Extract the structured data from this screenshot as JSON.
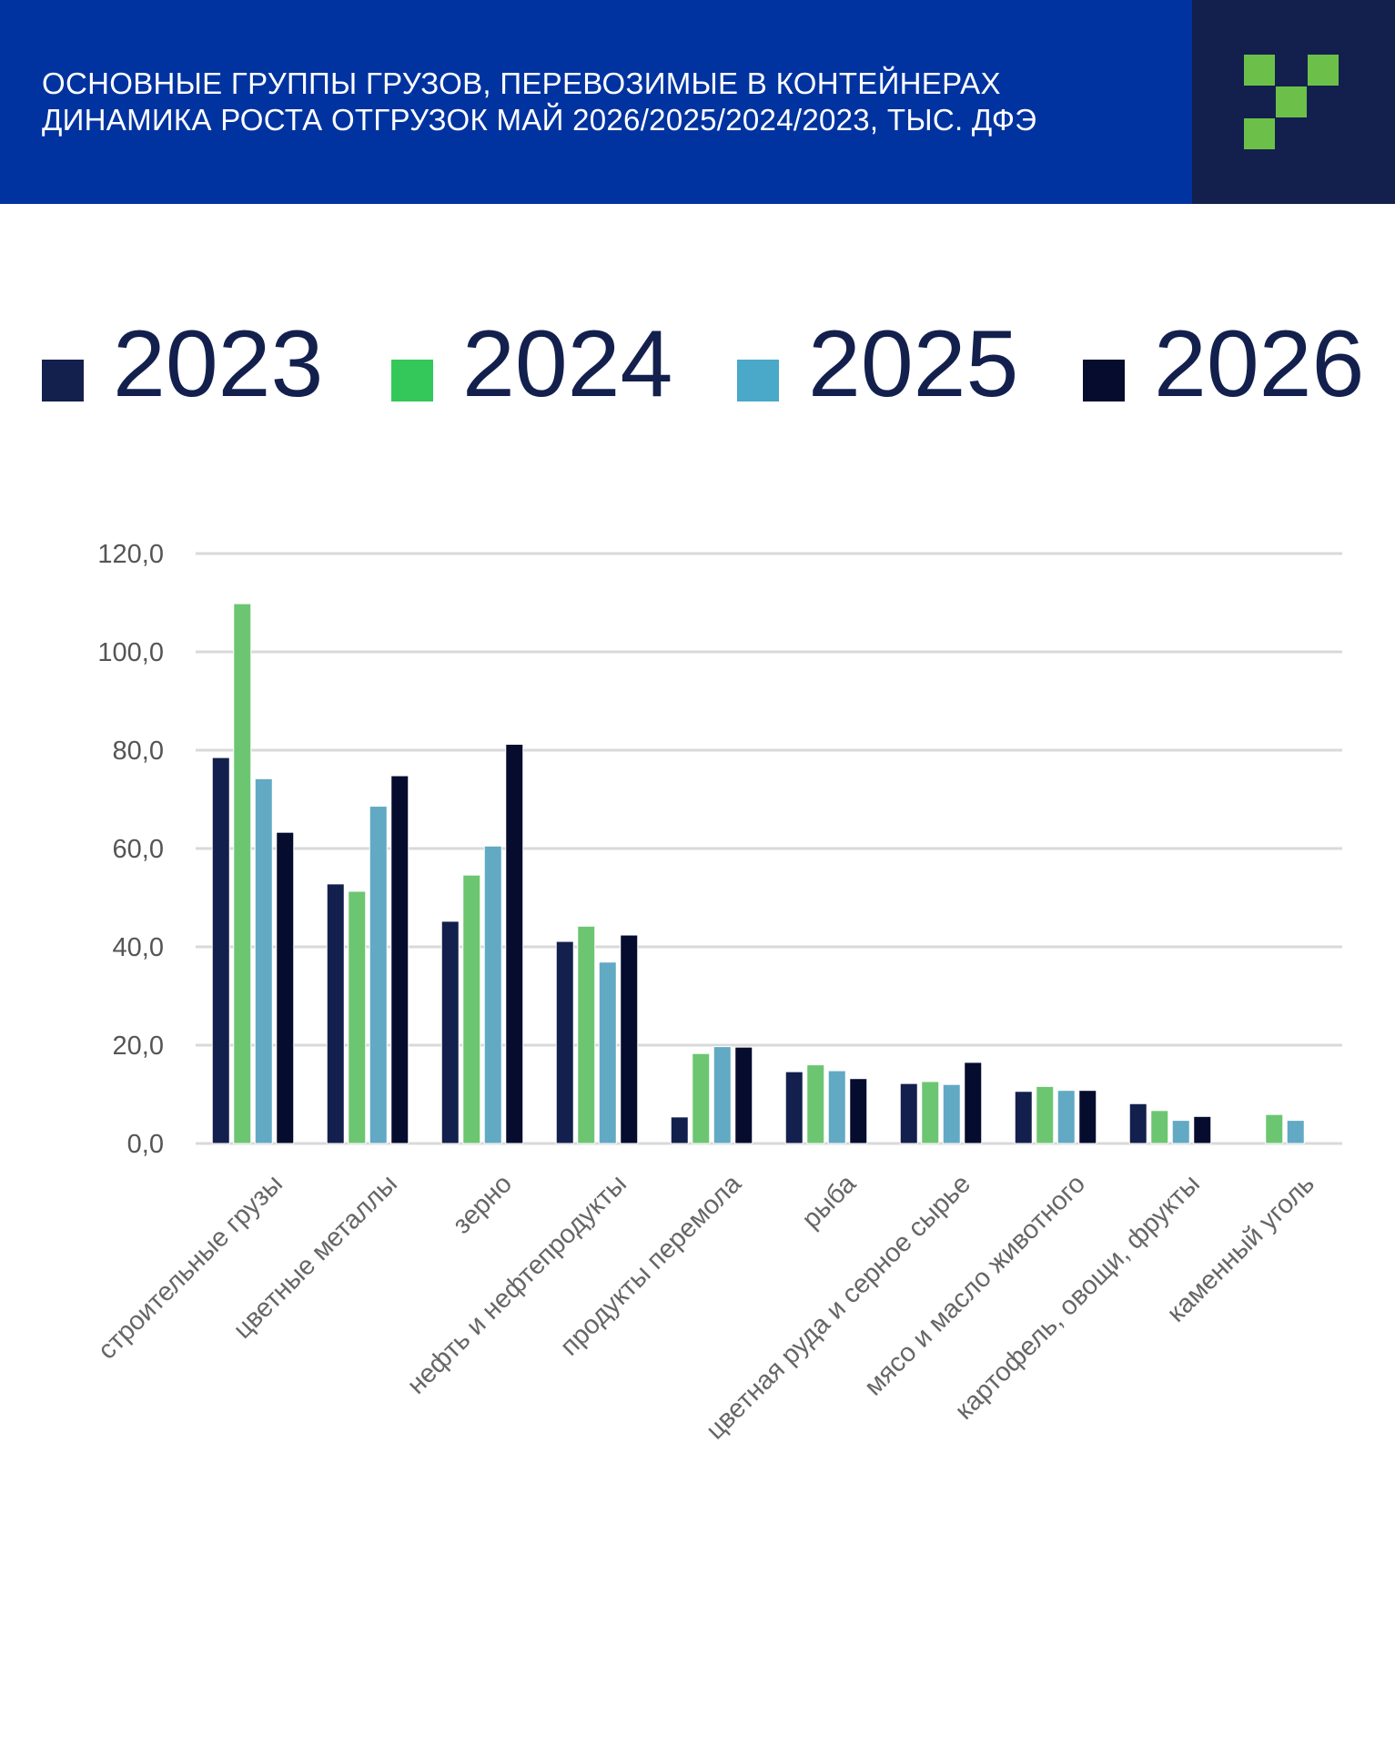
{
  "header": {
    "title_line1": "ОСНОВНЫЕ ГРУППЫ ГРУЗОВ, ПЕРЕВОЗИМЫЕ В КОНТЕЙНЕРАХ",
    "title_line2": "ДИНАМИКА РОСТА ОТГРУЗОК МАЙ 2026/2025/2024/2023, ТЫС. ДФЭ",
    "logo": "green-pixel-check-logo"
  },
  "colors": {
    "header_bg": "#0033a0",
    "logo_bg": "#13204d",
    "logo_green": "#6cc04a"
  },
  "legend": [
    {
      "label": "2023",
      "color": "#13204d"
    },
    {
      "label": "2024",
      "color": "#34c759"
    },
    {
      "label": "2025",
      "color": "#4aa8c8"
    },
    {
      "label": "2026",
      "color": "#050c2e"
    }
  ],
  "chart_data": {
    "type": "bar",
    "title": "",
    "xlabel": "",
    "ylabel": "",
    "ylim": [
      0,
      120
    ],
    "yticks": [
      "0,0",
      "20,0",
      "40,0",
      "60,0",
      "80,0",
      "100,0",
      "120,0"
    ],
    "grid": true,
    "legend_position": "top",
    "categories": [
      "строительные грузы",
      "цветные металлы",
      "зерно",
      "нефть и нефтепродукты",
      "продукты перемола",
      "рыба",
      "цветная руда и серное сырье",
      "мясо и масло животного",
      "картофель, овощи, фрукты",
      "каменный уголь"
    ],
    "series": [
      {
        "name": "2023",
        "color": "#13204d",
        "values": [
          78.5,
          52.8,
          45.2,
          41.1,
          5.4,
          14.6,
          12.2,
          10.6,
          8.1,
          null
        ]
      },
      {
        "name": "2024",
        "color": "#6cc671",
        "values": [
          109.8,
          51.3,
          54.6,
          44.2,
          18.3,
          16.0,
          12.6,
          11.6,
          6.7,
          5.9
        ]
      },
      {
        "name": "2025",
        "color": "#62a9c4",
        "values": [
          74.2,
          68.6,
          60.5,
          36.9,
          19.7,
          14.8,
          12.0,
          10.8,
          4.7,
          4.7
        ]
      },
      {
        "name": "2026",
        "color": "#050c2e",
        "values": [
          63.3,
          74.8,
          81.2,
          42.4,
          19.6,
          13.2,
          16.5,
          10.8,
          5.5,
          null
        ]
      }
    ]
  }
}
